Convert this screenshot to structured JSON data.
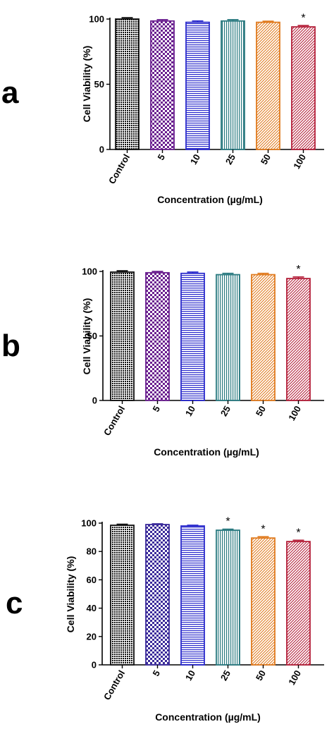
{
  "chart_data": [
    {
      "type": "bar",
      "panel_label": "a",
      "categories": [
        "Control",
        "5",
        "10",
        "25",
        "50",
        "100"
      ],
      "values": [
        100,
        98.5,
        97.5,
        98.5,
        97.5,
        94
      ],
      "errors": [
        1,
        1,
        1,
        1,
        0.8,
        1
      ],
      "significance": [
        "",
        "",
        "",
        "",
        "",
        "*"
      ],
      "colors": [
        "#111111",
        "#6a1f8f",
        "#2b2bcc",
        "#2a7a80",
        "#e07b1f",
        "#b4203a"
      ],
      "patterns": [
        "dots",
        "checker",
        "hlines",
        "vlines",
        "diag",
        "diag-red"
      ],
      "xlabel": "Concentration (µg/mL)",
      "ylabel": "Cell Viability (%)",
      "ylim": [
        0,
        100
      ],
      "yticks": [
        0,
        50,
        100
      ]
    },
    {
      "type": "bar",
      "panel_label": "b",
      "categories": [
        "Control",
        "5",
        "10",
        "25",
        "50",
        "100"
      ],
      "values": [
        99.5,
        99,
        98.5,
        97.5,
        97.5,
        94.5
      ],
      "errors": [
        1,
        1,
        1,
        1,
        1,
        1.2
      ],
      "significance": [
        "",
        "",
        "",
        "",
        "",
        "*"
      ],
      "colors": [
        "#111111",
        "#6a1f8f",
        "#2b2bcc",
        "#2a7a80",
        "#e07b1f",
        "#b4203a"
      ],
      "patterns": [
        "dots",
        "checker",
        "hlines",
        "vlines",
        "diag",
        "diag-red"
      ],
      "xlabel": "Concentration (µg/mL)",
      "ylabel": "Cell Viability (%)",
      "ylim": [
        0,
        100
      ],
      "yticks": [
        0,
        50,
        100
      ]
    },
    {
      "type": "bar",
      "panel_label": "c",
      "categories": [
        "Control",
        "5",
        "10",
        "25",
        "50",
        "100"
      ],
      "values": [
        98.5,
        99,
        98,
        95,
        89.5,
        87
      ],
      "errors": [
        0.7,
        0.5,
        0.5,
        0.7,
        0.9,
        0.9
      ],
      "significance": [
        "",
        "",
        "",
        "*",
        "*",
        "*"
      ],
      "colors": [
        "#111111",
        "#3a2a9a",
        "#2b2bcc",
        "#2a7a80",
        "#e07b1f",
        "#b4203a"
      ],
      "patterns": [
        "dots",
        "checker",
        "hlines",
        "vlines",
        "diag",
        "diag-red"
      ],
      "xlabel": "Concentration (µg/mL)",
      "ylabel": "Cell Viability (%)",
      "ylim": [
        0,
        100
      ],
      "yticks": [
        0,
        20,
        40,
        60,
        80,
        100
      ]
    }
  ]
}
